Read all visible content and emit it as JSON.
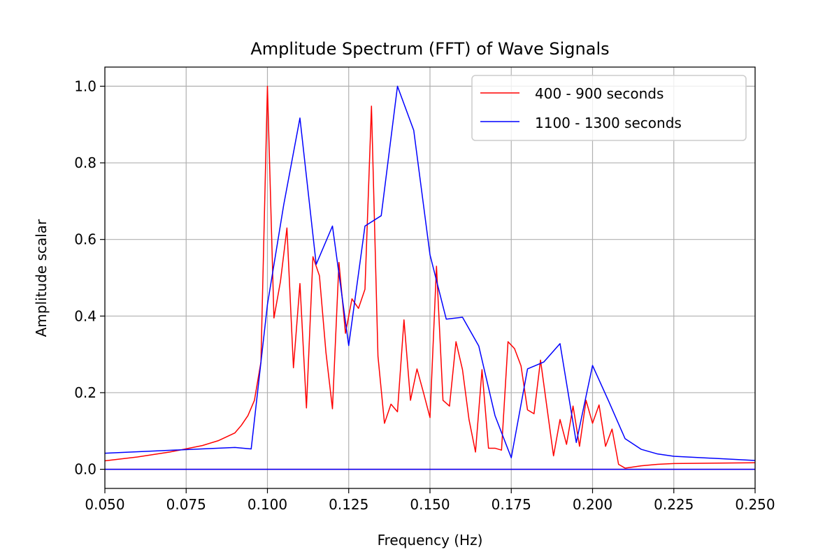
{
  "chart_data": {
    "type": "line",
    "title": "Amplitude Spectrum (FFT) of Wave Signals",
    "xlabel": "Frequency (Hz)",
    "ylabel": "Amplitude scalar",
    "xlim": [
      0.05,
      0.25
    ],
    "ylim": [
      -0.05,
      1.05
    ],
    "grid": true,
    "legend_position": "top-right",
    "x_ticks": [
      0.05,
      0.075,
      0.1,
      0.125,
      0.15,
      0.175,
      0.2,
      0.225,
      0.25
    ],
    "x_tick_labels": [
      "0.050",
      "0.075",
      "0.100",
      "0.125",
      "0.150",
      "0.175",
      "0.200",
      "0.225",
      "0.250"
    ],
    "y_ticks": [
      0.0,
      0.2,
      0.4,
      0.6,
      0.8,
      1.0
    ],
    "y_tick_labels": [
      "0.0",
      "0.2",
      "0.4",
      "0.6",
      "0.8",
      "1.0"
    ],
    "series": [
      {
        "name": "400 - 900 seconds",
        "color": "#ff0000",
        "x": [
          0.05,
          0.06,
          0.07,
          0.08,
          0.085,
          0.09,
          0.092,
          0.094,
          0.096,
          0.098,
          0.1,
          0.102,
          0.104,
          0.106,
          0.108,
          0.11,
          0.112,
          0.114,
          0.116,
          0.118,
          0.12,
          0.122,
          0.124,
          0.126,
          0.128,
          0.13,
          0.132,
          0.134,
          0.136,
          0.138,
          0.14,
          0.142,
          0.144,
          0.146,
          0.148,
          0.15,
          0.152,
          0.154,
          0.156,
          0.158,
          0.16,
          0.162,
          0.164,
          0.166,
          0.168,
          0.17,
          0.172,
          0.174,
          0.176,
          0.178,
          0.18,
          0.182,
          0.184,
          0.186,
          0.188,
          0.19,
          0.192,
          0.194,
          0.196,
          0.198,
          0.2,
          0.202,
          0.204,
          0.206,
          0.208,
          0.21,
          0.215,
          0.22,
          0.225,
          0.25
        ],
        "y": [
          0.022,
          0.032,
          0.045,
          0.062,
          0.075,
          0.095,
          0.115,
          0.14,
          0.18,
          0.28,
          1.0,
          0.395,
          0.49,
          0.63,
          0.265,
          0.485,
          0.16,
          0.555,
          0.505,
          0.305,
          0.158,
          0.54,
          0.355,
          0.445,
          0.42,
          0.47,
          0.948,
          0.295,
          0.12,
          0.17,
          0.15,
          0.39,
          0.18,
          0.262,
          0.2,
          0.135,
          0.53,
          0.18,
          0.165,
          0.333,
          0.26,
          0.13,
          0.045,
          0.26,
          0.055,
          0.055,
          0.05,
          0.333,
          0.315,
          0.27,
          0.155,
          0.145,
          0.285,
          0.16,
          0.035,
          0.13,
          0.065,
          0.165,
          0.06,
          0.18,
          0.12,
          0.168,
          0.06,
          0.105,
          0.013,
          0.003,
          0.009,
          0.013,
          0.015,
          0.017
        ]
      },
      {
        "name": "1100 - 1300 seconds",
        "color": "#0000ff",
        "x": [
          0.05,
          0.09,
          0.095,
          0.1,
          0.105,
          0.11,
          0.115,
          0.12,
          0.125,
          0.13,
          0.135,
          0.14,
          0.145,
          0.15,
          0.155,
          0.16,
          0.165,
          0.17,
          0.175,
          0.18,
          0.185,
          0.19,
          0.195,
          0.2,
          0.205,
          0.21,
          0.215,
          0.22,
          0.225,
          0.25
        ],
        "y": [
          0.042,
          0.057,
          0.053,
          0.43,
          0.69,
          0.917,
          0.535,
          0.635,
          0.323,
          0.635,
          0.662,
          1.0,
          0.885,
          0.56,
          0.392,
          0.397,
          0.322,
          0.14,
          0.03,
          0.262,
          0.28,
          0.328,
          0.07,
          0.271,
          0.177,
          0.08,
          0.052,
          0.04,
          0.034,
          0.023
        ]
      }
    ],
    "baselines": [
      {
        "color": "#ff0000",
        "y": 0.0
      },
      {
        "color": "#0000ff",
        "y": 0.0
      }
    ]
  }
}
